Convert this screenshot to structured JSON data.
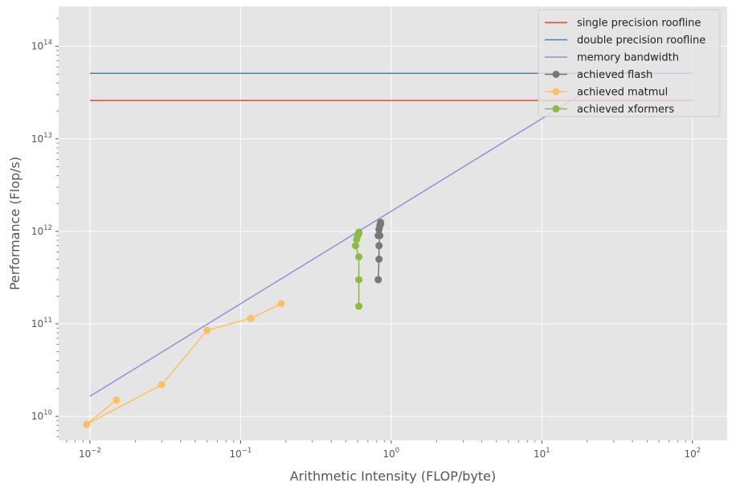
{
  "chart_data": {
    "type": "line",
    "xlabel": "Arithmetic Intensity (FLOP/byte)",
    "ylabel": "Performance (Flop/s)",
    "x_scale": "log",
    "y_scale": "log",
    "xlim": [
      0.0062,
      170
    ],
    "ylim": [
      5500000000.0,
      270000000000000.0
    ],
    "x_ticks": [
      {
        "value": 0.01,
        "base": "10",
        "exp": "−2"
      },
      {
        "value": 0.1,
        "base": "10",
        "exp": "−1"
      },
      {
        "value": 1,
        "base": "10",
        "exp": "0"
      },
      {
        "value": 10,
        "base": "10",
        "exp": "1"
      },
      {
        "value": 100,
        "base": "10",
        "exp": "2"
      }
    ],
    "y_ticks": [
      {
        "value": 10000000000.0,
        "base": "10",
        "exp": "10"
      },
      {
        "value": 100000000000.0,
        "base": "10",
        "exp": "11"
      },
      {
        "value": 1000000000000.0,
        "base": "10",
        "exp": "12"
      },
      {
        "value": 10000000000000.0,
        "base": "10",
        "exp": "13"
      },
      {
        "value": 100000000000000.0,
        "base": "10",
        "exp": "14"
      }
    ],
    "grid": true,
    "legend_position": "top-right",
    "series": [
      {
        "name": "single precision roofline",
        "color": "#E24A33",
        "marker": false,
        "x": [
          0.01,
          100
        ],
        "y": [
          26000000000000.0,
          26000000000000.0
        ]
      },
      {
        "name": "double precision roofline",
        "color": "#348ABD",
        "marker": false,
        "x": [
          0.01,
          100
        ],
        "y": [
          51000000000000.0,
          51000000000000.0
        ]
      },
      {
        "name": "memory bandwidth",
        "color": "#988ED5",
        "marker": false,
        "x": [
          0.01,
          20
        ],
        "y": [
          16500000000.0,
          33000000000000.0
        ]
      },
      {
        "name": "achieved flash",
        "color": "#777777",
        "marker": true,
        "x": [
          0.82,
          0.83,
          0.83,
          0.84,
          0.82,
          0.83,
          0.84,
          0.85,
          0.85
        ],
        "y": [
          300000000000.0,
          500000000000.0,
          700000000000.0,
          900000000000.0,
          900000000000.0,
          1050000000000.0,
          1150000000000.0,
          1200000000000.0,
          1250000000000.0
        ]
      },
      {
        "name": "achieved matmul",
        "color": "#FBC15E",
        "marker": true,
        "x": [
          0.0095,
          0.015,
          0.0095,
          0.03,
          0.06,
          0.117,
          0.186
        ],
        "y": [
          8200000000.0,
          15000000000.0,
          8200000000.0,
          22000000000.0,
          85000000000.0,
          115000000000.0,
          165000000000.0
        ]
      },
      {
        "name": "achieved xformers",
        "color": "#8EBA42",
        "marker": true,
        "x": [
          0.61,
          0.61,
          0.61,
          0.58,
          0.59,
          0.6,
          0.61,
          0.61
        ],
        "y": [
          155000000000.0,
          300000000000.0,
          530000000000.0,
          700000000000.0,
          820000000000.0,
          900000000000.0,
          950000000000.0,
          980000000000.0
        ]
      }
    ]
  }
}
